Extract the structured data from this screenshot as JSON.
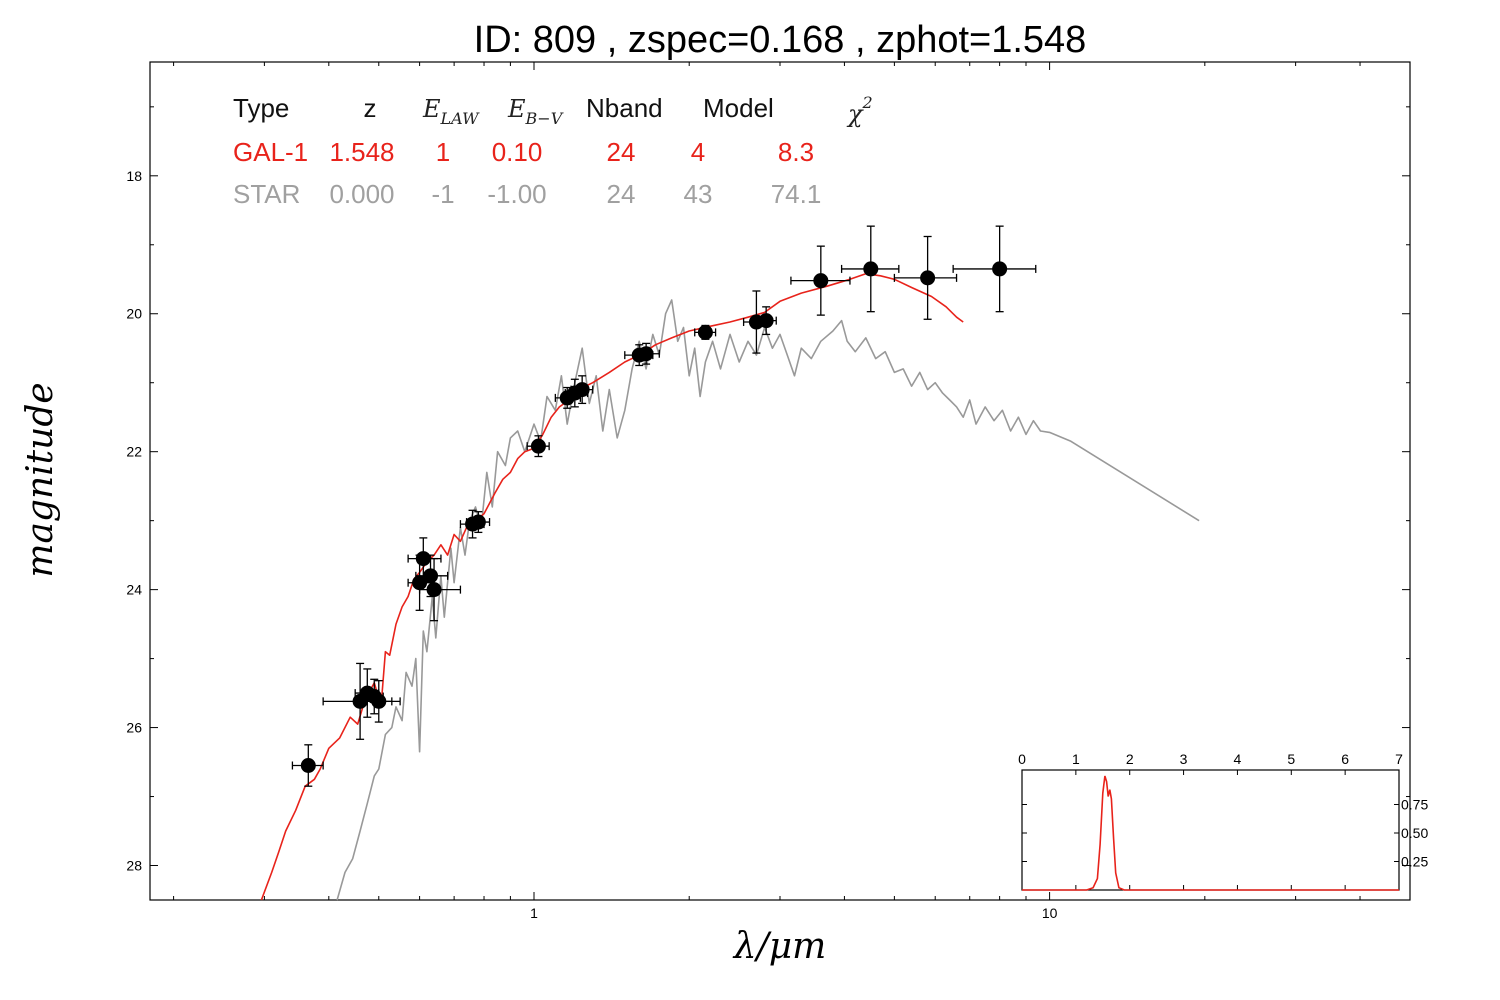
{
  "chart_data": {
    "type": "scatter",
    "title": "ID:  809   , zspec=0.168 , zphot=1.548",
    "xlabel": "λ/μm",
    "ylabel": "magnitude",
    "x_scale": "log",
    "xlim": [
      0.18,
      50
    ],
    "ylim": [
      28.5,
      16.35
    ],
    "y_inverted": true,
    "x_ticks": [
      {
        "v": 1,
        "label": "1"
      },
      {
        "v": 10,
        "label": "10"
      }
    ],
    "y_ticks": [
      {
        "v": 18,
        "label": "18"
      },
      {
        "v": 20,
        "label": "20"
      },
      {
        "v": 22,
        "label": "22"
      },
      {
        "v": 24,
        "label": "24"
      },
      {
        "v": 26,
        "label": "26"
      },
      {
        "v": 28,
        "label": "28"
      }
    ],
    "fit_table": {
      "headers": [
        "Type",
        "z",
        "E",
        "E",
        "Nband",
        "Model",
        "χ"
      ],
      "header_subscripts": {
        "E_law": "LAW",
        "E_bv": "B−V",
        "chi_sup": "2"
      },
      "rows": [
        {
          "color": "#e8231b",
          "cells": [
            "GAL-1",
            "1.548",
            "1",
            "0.10",
            "24",
            "4",
            "8.3"
          ]
        },
        {
          "color": "#a0a0a0",
          "cells": [
            "STAR",
            "0.000",
            "-1",
            "-1.00",
            "24",
            "43",
            "74.1"
          ]
        }
      ]
    },
    "photometry": [
      {
        "x": 0.365,
        "y": 26.55,
        "xerr": [
          0.34,
          0.39
        ],
        "yerr": 0.3
      },
      {
        "x": 0.46,
        "y": 25.62,
        "xerr": [
          0.39,
          0.55
        ],
        "yerr": 0.55
      },
      {
        "x": 0.475,
        "y": 25.5,
        "xerr": [
          0.45,
          0.5
        ],
        "yerr": 0.35
      },
      {
        "x": 0.49,
        "y": 25.55,
        "xerr": [
          0.465,
          0.51
        ],
        "yerr": 0.25
      },
      {
        "x": 0.5,
        "y": 25.62,
        "xerr": [
          0.475,
          0.53
        ],
        "yerr": 0.3
      },
      {
        "x": 0.6,
        "y": 23.9,
        "xerr": [
          0.57,
          0.64
        ],
        "yerr": 0.4
      },
      {
        "x": 0.61,
        "y": 23.55,
        "xerr": [
          0.57,
          0.66
        ],
        "yerr": 0.3
      },
      {
        "x": 0.63,
        "y": 23.8,
        "xerr": [
          0.59,
          0.68
        ],
        "yerr": 0.3
      },
      {
        "x": 0.64,
        "y": 24.0,
        "xerr": [
          0.6,
          0.72
        ],
        "yerr": 0.45
      },
      {
        "x": 0.76,
        "y": 23.05,
        "xerr": [
          0.72,
          0.8
        ],
        "yerr": 0.2
      },
      {
        "x": 0.78,
        "y": 23.02,
        "xerr": [
          0.74,
          0.82
        ],
        "yerr": 0.15
      },
      {
        "x": 1.02,
        "y": 21.92,
        "xerr": [
          0.97,
          1.07
        ],
        "yerr": 0.15
      },
      {
        "x": 1.16,
        "y": 21.22,
        "xerr": [
          1.1,
          1.23
        ],
        "yerr": 0.15
      },
      {
        "x": 1.2,
        "y": 21.15,
        "xerr": [
          1.15,
          1.27
        ],
        "yerr": 0.2
      },
      {
        "x": 1.24,
        "y": 21.1,
        "xerr": [
          1.18,
          1.3
        ],
        "yerr": 0.2
      },
      {
        "x": 1.6,
        "y": 20.6,
        "xerr": [
          1.5,
          1.7
        ],
        "yerr": 0.15
      },
      {
        "x": 1.65,
        "y": 20.58,
        "xerr": [
          1.57,
          1.75
        ],
        "yerr": 0.15
      },
      {
        "x": 2.15,
        "y": 20.27,
        "xerr": [
          2.05,
          2.25
        ],
        "yerr": 0.1
      },
      {
        "x": 2.7,
        "y": 20.12,
        "xerr": [
          2.55,
          2.85
        ],
        "yerr": 0.45
      },
      {
        "x": 2.82,
        "y": 20.1,
        "xerr": [
          2.7,
          2.95
        ],
        "yerr": 0.2
      },
      {
        "x": 3.6,
        "y": 19.52,
        "xerr": [
          3.15,
          4.1
        ],
        "yerr": 0.5
      },
      {
        "x": 4.5,
        "y": 19.35,
        "xerr": [
          3.95,
          5.1
        ],
        "yerr": 0.62
      },
      {
        "x": 5.8,
        "y": 19.48,
        "xerr": [
          5.0,
          6.6
        ],
        "yerr": 0.6
      },
      {
        "x": 8.0,
        "y": 19.35,
        "xerr": [
          6.5,
          9.4
        ],
        "yerr": 0.62
      }
    ],
    "series": [
      {
        "color": "#e8231b",
        "points": [
          [
            0.296,
            28.5
          ],
          [
            0.31,
            28.1
          ],
          [
            0.32,
            27.8
          ],
          [
            0.33,
            27.5
          ],
          [
            0.345,
            27.2
          ],
          [
            0.36,
            26.85
          ],
          [
            0.375,
            26.75
          ],
          [
            0.385,
            26.6
          ],
          [
            0.4,
            26.3
          ],
          [
            0.42,
            26.15
          ],
          [
            0.44,
            25.85
          ],
          [
            0.455,
            25.95
          ],
          [
            0.47,
            25.6
          ],
          [
            0.49,
            25.35
          ],
          [
            0.505,
            25.7
          ],
          [
            0.515,
            24.9
          ],
          [
            0.525,
            24.95
          ],
          [
            0.54,
            24.5
          ],
          [
            0.555,
            24.25
          ],
          [
            0.57,
            24.1
          ],
          [
            0.585,
            23.85
          ],
          [
            0.6,
            23.75
          ],
          [
            0.62,
            23.6
          ],
          [
            0.64,
            23.5
          ],
          [
            0.66,
            23.35
          ],
          [
            0.68,
            23.5
          ],
          [
            0.7,
            23.2
          ],
          [
            0.72,
            23.3
          ],
          [
            0.745,
            23.05
          ],
          [
            0.77,
            23.0
          ],
          [
            0.8,
            22.9
          ],
          [
            0.84,
            22.6
          ],
          [
            0.87,
            22.4
          ],
          [
            0.9,
            22.3
          ],
          [
            0.93,
            22.1
          ],
          [
            0.96,
            22.0
          ],
          [
            1.0,
            21.95
          ],
          [
            1.04,
            21.75
          ],
          [
            1.08,
            21.5
          ],
          [
            1.12,
            21.35
          ],
          [
            1.17,
            21.25
          ],
          [
            1.22,
            21.1
          ],
          [
            1.3,
            21.0
          ],
          [
            1.4,
            20.85
          ],
          [
            1.5,
            20.7
          ],
          [
            1.62,
            20.58
          ],
          [
            1.72,
            20.45
          ],
          [
            1.85,
            20.35
          ],
          [
            2.0,
            20.25
          ],
          [
            2.2,
            20.18
          ],
          [
            2.4,
            20.12
          ],
          [
            2.6,
            20.05
          ],
          [
            2.8,
            19.98
          ],
          [
            3.0,
            19.82
          ],
          [
            3.3,
            19.7
          ],
          [
            3.7,
            19.6
          ],
          [
            4.1,
            19.5
          ],
          [
            4.4,
            19.42
          ],
          [
            4.7,
            19.45
          ],
          [
            5.0,
            19.5
          ],
          [
            5.4,
            19.62
          ],
          [
            5.9,
            19.75
          ],
          [
            6.3,
            19.9
          ],
          [
            6.6,
            20.05
          ],
          [
            6.8,
            20.12
          ]
        ]
      },
      {
        "color": "#999999",
        "points": [
          [
            0.415,
            28.5
          ],
          [
            0.43,
            28.1
          ],
          [
            0.445,
            27.9
          ],
          [
            0.46,
            27.5
          ],
          [
            0.475,
            27.1
          ],
          [
            0.49,
            26.7
          ],
          [
            0.5,
            26.6
          ],
          [
            0.515,
            26.1
          ],
          [
            0.53,
            26.0
          ],
          [
            0.54,
            25.7
          ],
          [
            0.555,
            25.9
          ],
          [
            0.565,
            25.2
          ],
          [
            0.58,
            25.4
          ],
          [
            0.59,
            25.0
          ],
          [
            0.6,
            26.35
          ],
          [
            0.61,
            24.6
          ],
          [
            0.62,
            24.9
          ],
          [
            0.635,
            24.1
          ],
          [
            0.645,
            24.7
          ],
          [
            0.66,
            23.8
          ],
          [
            0.67,
            24.4
          ],
          [
            0.69,
            23.4
          ],
          [
            0.7,
            23.9
          ],
          [
            0.72,
            23.1
          ],
          [
            0.735,
            23.5
          ],
          [
            0.75,
            23.0
          ],
          [
            0.77,
            22.8
          ],
          [
            0.79,
            23.1
          ],
          [
            0.81,
            22.3
          ],
          [
            0.83,
            22.8
          ],
          [
            0.85,
            22.0
          ],
          [
            0.88,
            22.2
          ],
          [
            0.9,
            21.8
          ],
          [
            0.93,
            21.7
          ],
          [
            0.96,
            22.0
          ],
          [
            1.0,
            21.6
          ],
          [
            1.03,
            21.85
          ],
          [
            1.06,
            21.2
          ],
          [
            1.1,
            21.4
          ],
          [
            1.13,
            20.9
          ],
          [
            1.16,
            21.6
          ],
          [
            1.2,
            21.0
          ],
          [
            1.24,
            20.5
          ],
          [
            1.28,
            21.3
          ],
          [
            1.32,
            20.9
          ],
          [
            1.36,
            21.7
          ],
          [
            1.4,
            21.1
          ],
          [
            1.45,
            21.8
          ],
          [
            1.5,
            21.4
          ],
          [
            1.55,
            20.8
          ],
          [
            1.6,
            20.4
          ],
          [
            1.65,
            20.8
          ],
          [
            1.7,
            20.3
          ],
          [
            1.75,
            20.6
          ],
          [
            1.8,
            20.0
          ],
          [
            1.85,
            19.8
          ],
          [
            1.9,
            20.4
          ],
          [
            1.95,
            20.2
          ],
          [
            2.0,
            20.9
          ],
          [
            2.05,
            20.5
          ],
          [
            2.1,
            21.2
          ],
          [
            2.15,
            20.7
          ],
          [
            2.22,
            20.4
          ],
          [
            2.3,
            20.8
          ],
          [
            2.4,
            20.3
          ],
          [
            2.5,
            20.7
          ],
          [
            2.6,
            20.4
          ],
          [
            2.7,
            20.6
          ],
          [
            2.8,
            20.2
          ],
          [
            2.9,
            20.5
          ],
          [
            3.0,
            20.3
          ],
          [
            3.1,
            20.6
          ],
          [
            3.2,
            20.9
          ],
          [
            3.3,
            20.5
          ],
          [
            3.45,
            20.65
          ],
          [
            3.6,
            20.4
          ],
          [
            3.8,
            20.25
          ],
          [
            3.95,
            20.1
          ],
          [
            4.05,
            20.4
          ],
          [
            4.2,
            20.55
          ],
          [
            4.4,
            20.35
          ],
          [
            4.6,
            20.65
          ],
          [
            4.8,
            20.55
          ],
          [
            5.0,
            20.85
          ],
          [
            5.2,
            20.8
          ],
          [
            5.4,
            21.05
          ],
          [
            5.6,
            20.85
          ],
          [
            5.8,
            21.1
          ],
          [
            6.0,
            21.0
          ],
          [
            6.2,
            21.15
          ],
          [
            6.4,
            21.25
          ],
          [
            6.6,
            21.35
          ],
          [
            6.8,
            21.5
          ],
          [
            7.0,
            21.25
          ],
          [
            7.2,
            21.6
          ],
          [
            7.5,
            21.35
          ],
          [
            7.8,
            21.55
          ],
          [
            8.1,
            21.4
          ],
          [
            8.4,
            21.7
          ],
          [
            8.7,
            21.5
          ],
          [
            9.0,
            21.75
          ],
          [
            9.3,
            21.55
          ],
          [
            9.6,
            21.7
          ],
          [
            10.0,
            21.72
          ],
          [
            11.0,
            21.85
          ],
          [
            19.5,
            23.0
          ]
        ]
      }
    ],
    "inset": {
      "type": "line",
      "xlim": [
        0,
        7
      ],
      "ylim": [
        0,
        1.0
      ],
      "x_ticks": [
        "0",
        "1",
        "2",
        "3",
        "4",
        "5",
        "6",
        "7"
      ],
      "y_ticks": [
        {
          "v": 0.25,
          "label": "0.25"
        },
        {
          "v": 0.5,
          "label": "0.50"
        },
        {
          "v": 0.75,
          "label": "0.75"
        }
      ],
      "color": "#e8231b",
      "points": [
        [
          0,
          0.0
        ],
        [
          1.2,
          0.0
        ],
        [
          1.32,
          0.02
        ],
        [
          1.4,
          0.1
        ],
        [
          1.45,
          0.4
        ],
        [
          1.5,
          0.85
        ],
        [
          1.54,
          1.0
        ],
        [
          1.57,
          0.95
        ],
        [
          1.6,
          0.82
        ],
        [
          1.63,
          0.88
        ],
        [
          1.66,
          0.8
        ],
        [
          1.7,
          0.45
        ],
        [
          1.74,
          0.15
        ],
        [
          1.8,
          0.02
        ],
        [
          1.9,
          0.0
        ],
        [
          7,
          0.0
        ]
      ]
    }
  }
}
